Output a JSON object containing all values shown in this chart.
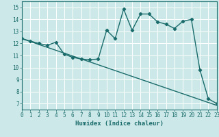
{
  "xlabel": "Humidex (Indice chaleur)",
  "bg_color": "#cce8e8",
  "grid_color": "#ffffff",
  "line_color": "#1a6b6b",
  "xlim": [
    0,
    23
  ],
  "ylim": [
    6.5,
    15.5
  ],
  "xticks": [
    0,
    1,
    2,
    3,
    4,
    5,
    6,
    7,
    8,
    9,
    10,
    11,
    12,
    13,
    14,
    15,
    16,
    17,
    18,
    19,
    20,
    21,
    22,
    23
  ],
  "yticks": [
    7,
    8,
    9,
    10,
    11,
    12,
    13,
    14,
    15
  ],
  "curve1_x": [
    0,
    1,
    2,
    3,
    4,
    5,
    6,
    7,
    8,
    9,
    10,
    11,
    12,
    13,
    14,
    15,
    16,
    17,
    18,
    19,
    20,
    21,
    22,
    23
  ],
  "curve1_y": [
    12.4,
    12.2,
    12.0,
    11.85,
    12.1,
    11.1,
    10.85,
    10.7,
    10.65,
    10.7,
    13.1,
    12.4,
    14.85,
    13.1,
    14.45,
    14.45,
    13.8,
    13.6,
    13.25,
    13.85,
    14.0,
    9.8,
    7.4,
    7.0
  ],
  "curve2_x": [
    0,
    23
  ],
  "curve2_y": [
    12.4,
    6.85
  ],
  "marker": "D",
  "marker_size": 2.2,
  "linewidth": 1.0,
  "tick_fontsize": 5.5,
  "xlabel_fontsize": 6.5
}
